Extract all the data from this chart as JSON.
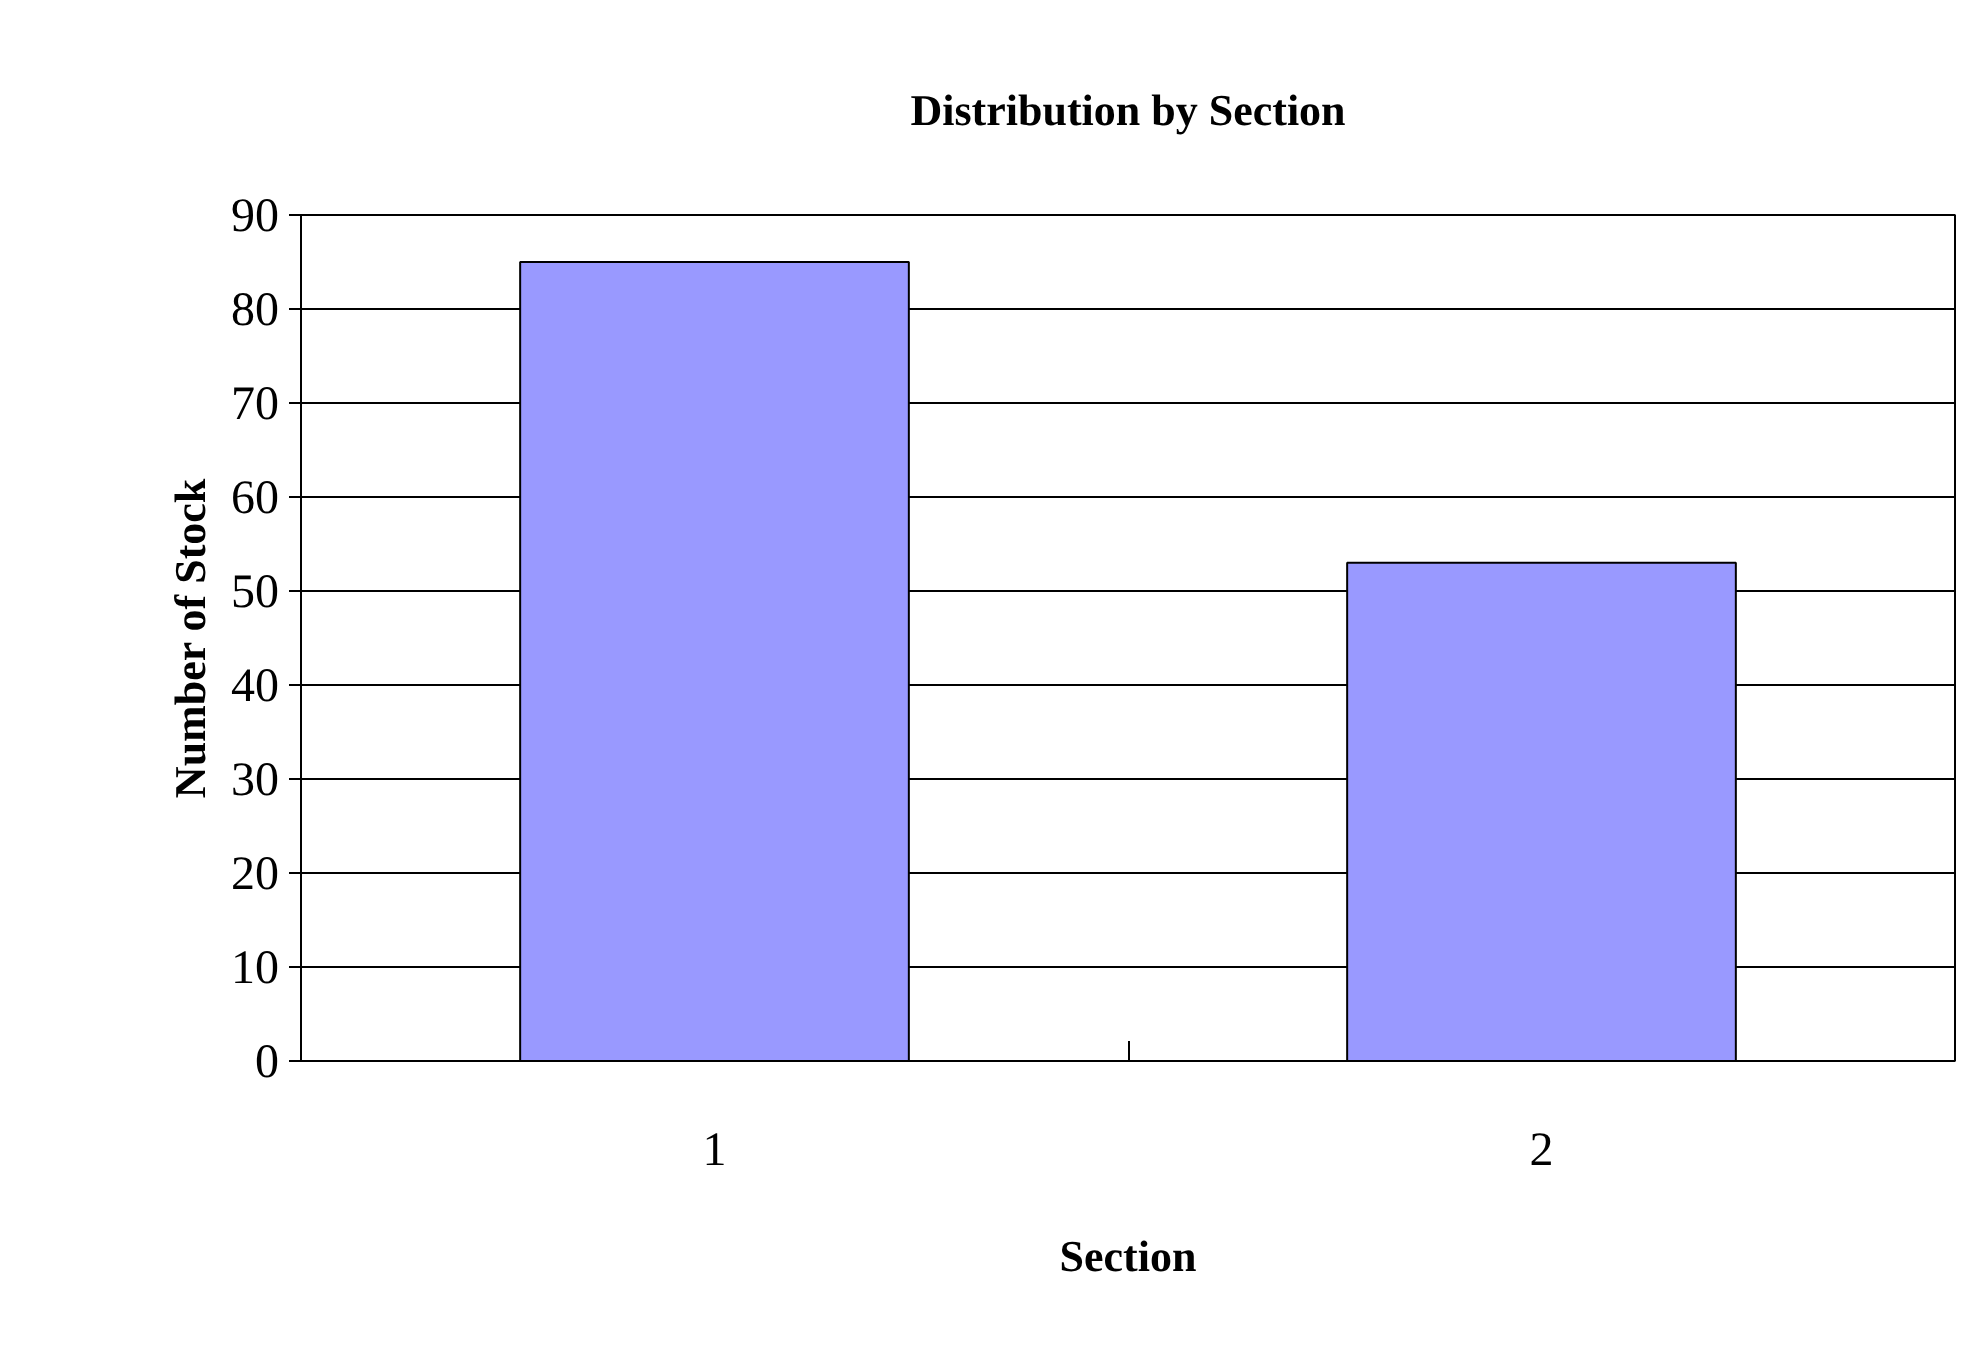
{
  "chart_data": {
    "type": "bar",
    "title": "Distribution by Section",
    "xlabel": "Section",
    "ylabel": "Number of Stock",
    "categories": [
      "1",
      "2"
    ],
    "values": [
      85,
      53
    ],
    "color": "#9999ff",
    "ylim": [
      0,
      90
    ],
    "yticks": [
      0,
      10,
      20,
      30,
      40,
      50,
      60,
      70,
      80,
      90
    ],
    "grid": "y"
  }
}
